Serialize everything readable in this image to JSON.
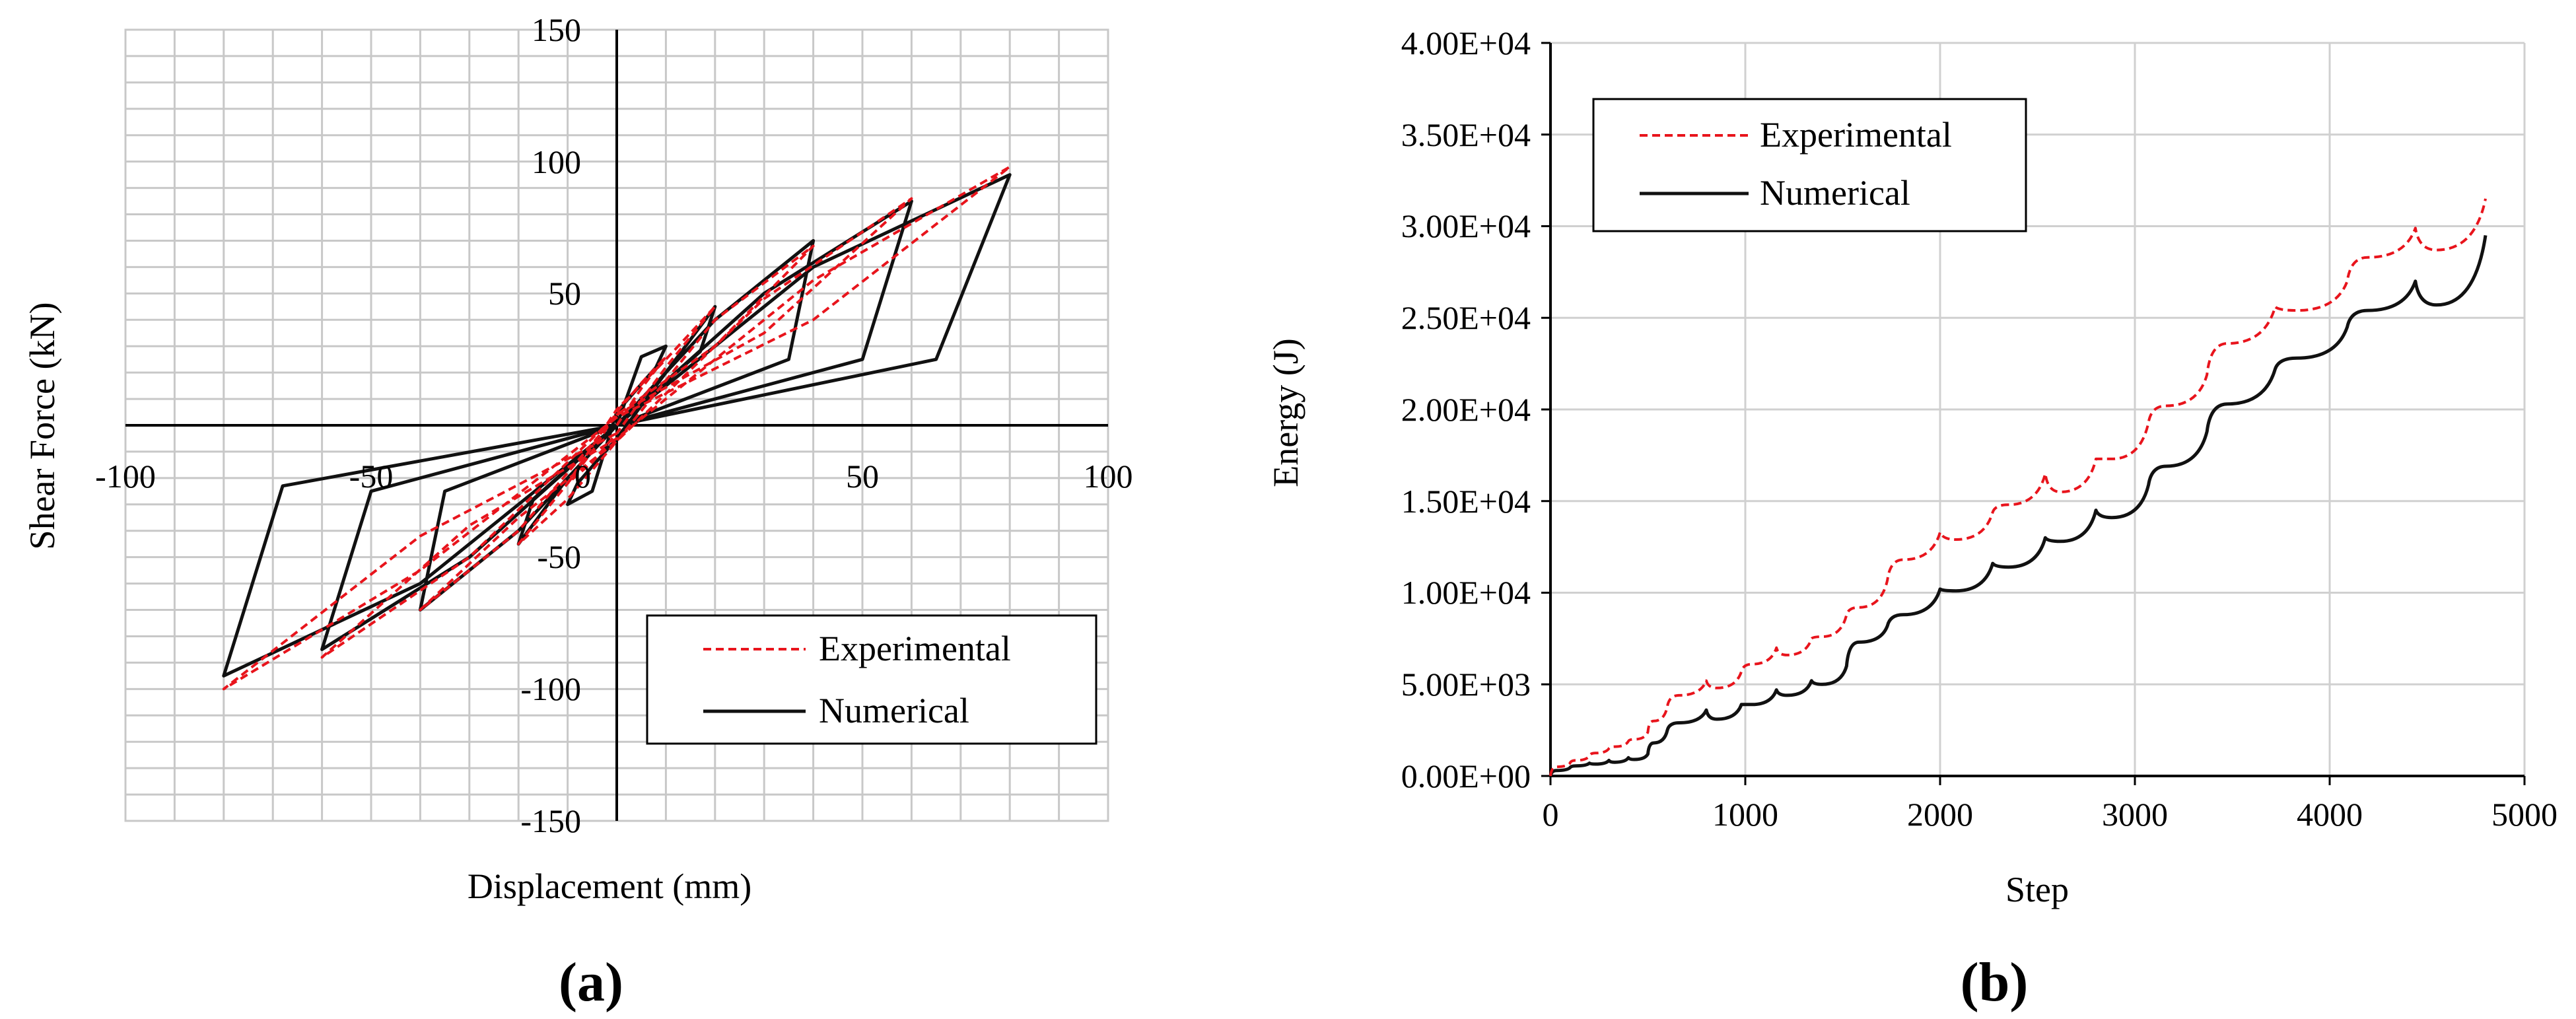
{
  "chart_data": [
    {
      "type": "line",
      "panel_label": "(a)",
      "xlabel": "Displacement (mm)",
      "ylabel": "Shear Force (kN)",
      "xlim": [
        -100,
        100
      ],
      "ylim": [
        -150,
        150
      ],
      "x_ticks": [
        "-100",
        "-50",
        "0",
        "50",
        "100"
      ],
      "y_ticks": [
        "150",
        "100",
        "50",
        "-50",
        "-100",
        "-150"
      ],
      "grid": true,
      "legend_position": "bottom-right",
      "colors": {
        "Experimental": "#e8141c",
        "Numerical": "#111111"
      },
      "series": [
        {
          "name": "Experimental",
          "style": "dashed",
          "x": [
            0,
            5,
            10,
            5,
            0,
            -5,
            -10,
            -5,
            0,
            10,
            20,
            10,
            0,
            -10,
            -20,
            -10,
            0,
            20,
            40,
            20,
            0,
            -20,
            -40,
            -20,
            0,
            30,
            60,
            30,
            0,
            -30,
            -60,
            -30,
            0,
            40,
            80,
            40,
            0,
            -40,
            -80,
            -40,
            0
          ],
          "y": [
            0,
            14,
            26,
            16,
            5,
            -10,
            -22,
            -14,
            -3,
            22,
            45,
            25,
            6,
            -22,
            -45,
            -28,
            -6,
            40,
            68,
            30,
            4,
            -40,
            -70,
            -35,
            -6,
            48,
            86,
            35,
            4,
            -50,
            -88,
            -38,
            -5,
            55,
            98,
            40,
            3,
            -55,
            -100,
            -42,
            -3
          ]
        },
        {
          "name": "Numerical",
          "style": "solid",
          "x": [
            0,
            5,
            10,
            8,
            0,
            -5,
            -10,
            -8,
            0,
            10,
            20,
            17,
            0,
            -10,
            -20,
            -17,
            0,
            20,
            40,
            35,
            0,
            -20,
            -40,
            -35,
            0,
            30,
            60,
            50,
            0,
            -30,
            -60,
            -50,
            0,
            40,
            80,
            65,
            0,
            -40,
            -80,
            -68,
            0
          ],
          "y": [
            0,
            26,
            30,
            22,
            5,
            -25,
            -30,
            -22,
            -5,
            20,
            45,
            28,
            0,
            -20,
            -45,
            -28,
            0,
            40,
            70,
            25,
            0,
            -40,
            -70,
            -25,
            0,
            50,
            85,
            25,
            0,
            -50,
            -85,
            -25,
            0,
            60,
            95,
            25,
            0,
            -60,
            -95,
            -23,
            0
          ]
        }
      ]
    },
    {
      "type": "line",
      "panel_label": "(b)",
      "xlabel": "Step",
      "ylabel": "Energy (J)",
      "xlim": [
        0,
        5000
      ],
      "ylim": [
        0,
        40000
      ],
      "x_ticks": [
        "0",
        "1000",
        "2000",
        "3000",
        "4000",
        "5000"
      ],
      "y_ticks": [
        "0.00E+00",
        "5.00E+03",
        "1.00E+04",
        "1.50E+04",
        "2.00E+04",
        "2.50E+04",
        "3.00E+04",
        "3.50E+04",
        "4.00E+04"
      ],
      "grid": true,
      "legend_position": "top-left",
      "colors": {
        "Experimental": "#e8141c",
        "Numerical": "#111111"
      },
      "series": [
        {
          "name": "Experimental",
          "style": "dashed",
          "cycle_end_step": [
            100,
            200,
            300,
            400,
            500,
            600,
            800,
            980,
            1160,
            1340,
            1520,
            1730,
            2000,
            2270,
            2540,
            2800,
            3070,
            3370,
            3720,
            4090,
            4440,
            4800
          ],
          "cycle_peak_energy": [
            700,
            1100,
            1500,
            1900,
            2400,
            3800,
            5200,
            5700,
            7000,
            7500,
            8800,
            10700,
            13300,
            14400,
            16500,
            17300,
            19300,
            21900,
            25600,
            27000,
            29900,
            31500
          ],
          "cycle_valley_energy": [
            500,
            850,
            1250,
            1600,
            2000,
            3000,
            4400,
            4800,
            6100,
            6600,
            7600,
            9200,
            11800,
            12900,
            14800,
            15500,
            17300,
            20200,
            23600,
            25400,
            28300,
            28700
          ]
        },
        {
          "name": "Numerical",
          "style": "solid",
          "cycle_end_step": [
            100,
            200,
            300,
            400,
            500,
            600,
            800,
            980,
            1160,
            1340,
            1520,
            1730,
            2000,
            2270,
            2540,
            2800,
            3070,
            3370,
            3720,
            4090,
            4440,
            4800
          ],
          "cycle_peak_energy": [
            450,
            700,
            850,
            1000,
            1200,
            2500,
            3600,
            3900,
            4700,
            5200,
            6000,
            8200,
            10200,
            11600,
            13000,
            14500,
            15900,
            18800,
            22200,
            24500,
            27000,
            29500
          ],
          "cycle_valley_energy": [
            300,
            550,
            650,
            750,
            900,
            1800,
            2900,
            3100,
            3900,
            4400,
            5000,
            7300,
            8800,
            10100,
            11400,
            12800,
            14100,
            16900,
            20300,
            22800,
            25400,
            25700
          ]
        }
      ]
    }
  ]
}
